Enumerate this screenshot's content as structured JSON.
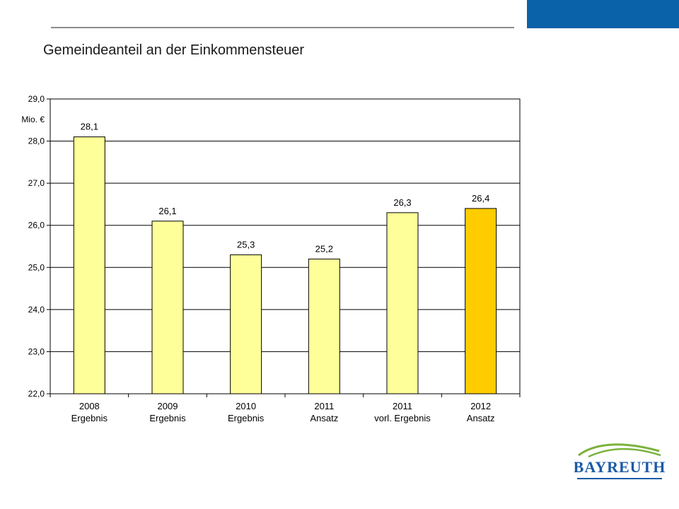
{
  "page": {
    "title": "Gemeindeanteil an der Einkommensteuer",
    "logo_text": "BAYREUTH"
  },
  "colors": {
    "accent": "#0a62a8",
    "bar_default": "#ffff99",
    "bar_highlight": "#ffcc00"
  },
  "chart_data": {
    "type": "bar",
    "title": "",
    "unit_label": "Mio. €",
    "categories": [
      [
        "2008",
        "Ergebnis"
      ],
      [
        "2009",
        "Ergebnis"
      ],
      [
        "2010",
        "Ergebnis"
      ],
      [
        "2011",
        "Ansatz"
      ],
      [
        "2011",
        "vorl. Ergebnis"
      ],
      [
        "2012",
        "Ansatz"
      ]
    ],
    "values": [
      28.1,
      26.1,
      25.3,
      25.2,
      26.3,
      26.4
    ],
    "data_labels": [
      "28,1",
      "26,1",
      "25,3",
      "25,2",
      "26,3",
      "26,4"
    ],
    "highlight_index": 5,
    "ylim": [
      22.0,
      29.0
    ],
    "yticks": [
      22.0,
      23.0,
      24.0,
      25.0,
      26.0,
      27.0,
      28.0,
      29.0
    ],
    "ytick_labels": [
      "22,0",
      "23,0",
      "24,0",
      "25,0",
      "26,0",
      "27,0",
      "28,0",
      "29,0"
    ],
    "grid": true,
    "legend": "none"
  }
}
